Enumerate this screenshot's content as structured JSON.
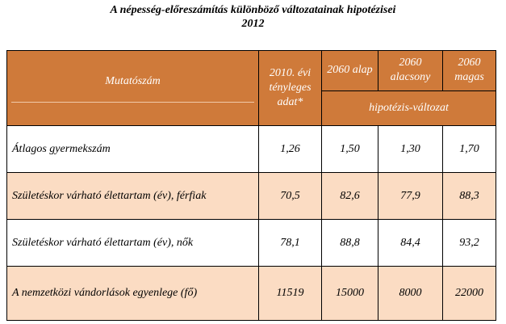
{
  "title": {
    "line1": "A népesség-előreszámítás különböző változatainak hipotézisei",
    "line2": "2012"
  },
  "table": {
    "header": {
      "indicator": "Mutatószám",
      "actual": "2010. évi tényleges adat*",
      "base": "2060 alap",
      "low": "2060 alacsony",
      "high": "2060 magas",
      "group": "hipotézis-változat"
    },
    "rows": [
      {
        "label": "Átlagos gyermekszám",
        "actual": "1,26",
        "base": "1,50",
        "low": "1,30",
        "high": "1,70"
      },
      {
        "label": "Születéskor várható élettartam (év),  férfiak",
        "actual": "70,5",
        "base": "82,6",
        "low": "77,9",
        "high": "88,3"
      },
      {
        "label": "Születéskor várható élettartam (év), nők",
        "actual": "78,1",
        "base": "88,8",
        "low": "84,4",
        "high": "93,2"
      },
      {
        "label": "A nemzetközi vándorlások egyenlege (fő)",
        "actual": "11519",
        "base": "15000",
        "low": "8000",
        "high": "22000"
      }
    ]
  }
}
